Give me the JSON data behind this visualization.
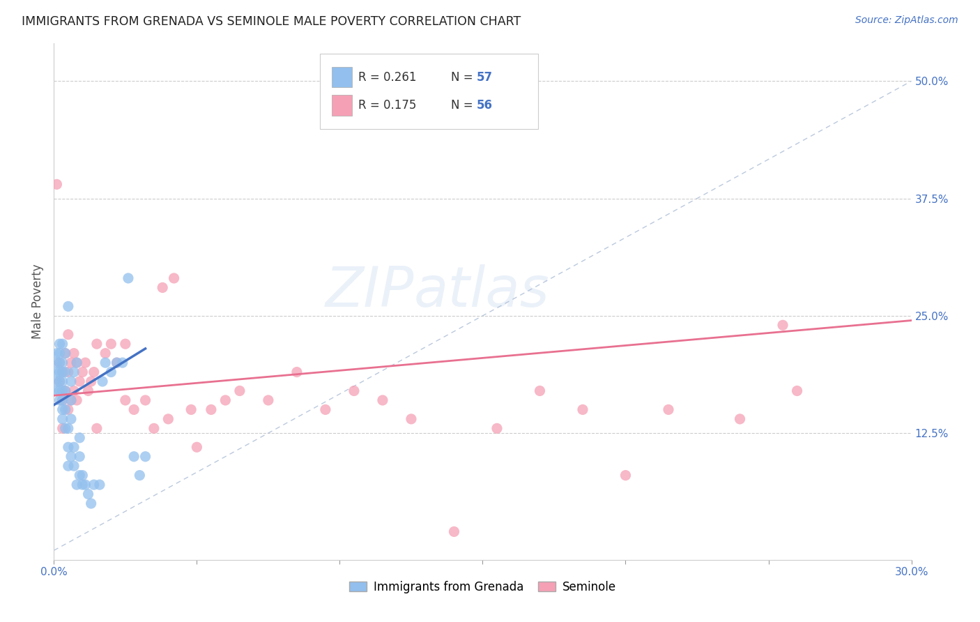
{
  "title": "IMMIGRANTS FROM GRENADA VS SEMINOLE MALE POVERTY CORRELATION CHART",
  "source": "Source: ZipAtlas.com",
  "ylabel": "Male Poverty",
  "yticks_labels": [
    "12.5%",
    "25.0%",
    "37.5%",
    "50.0%"
  ],
  "ytick_vals": [
    0.125,
    0.25,
    0.375,
    0.5
  ],
  "xlim": [
    0.0,
    0.3
  ],
  "ylim": [
    -0.01,
    0.54
  ],
  "legend_label1": "Immigrants from Grenada",
  "legend_label2": "Seminole",
  "color_blue": "#92BFED",
  "color_pink": "#F5A0B5",
  "color_trend_blue": "#4472C4",
  "color_trend_pink": "#E87090",
  "color_diag": "#AABBD4",
  "color_title": "#222222",
  "color_n_val": "#4472C4",
  "watermark": "ZIPatlas",
  "blue_x": [
    0.001,
    0.001,
    0.001,
    0.001,
    0.001,
    0.002,
    0.002,
    0.002,
    0.002,
    0.002,
    0.002,
    0.002,
    0.003,
    0.003,
    0.003,
    0.003,
    0.003,
    0.003,
    0.003,
    0.003,
    0.004,
    0.004,
    0.004,
    0.004,
    0.004,
    0.005,
    0.005,
    0.005,
    0.005,
    0.006,
    0.006,
    0.006,
    0.006,
    0.007,
    0.007,
    0.007,
    0.008,
    0.008,
    0.009,
    0.009,
    0.009,
    0.01,
    0.01,
    0.011,
    0.012,
    0.013,
    0.014,
    0.016,
    0.017,
    0.018,
    0.02,
    0.022,
    0.024,
    0.026,
    0.028,
    0.03,
    0.032
  ],
  "blue_y": [
    0.17,
    0.18,
    0.19,
    0.2,
    0.21,
    0.16,
    0.17,
    0.18,
    0.19,
    0.2,
    0.21,
    0.22,
    0.14,
    0.15,
    0.16,
    0.17,
    0.18,
    0.19,
    0.2,
    0.22,
    0.13,
    0.15,
    0.17,
    0.19,
    0.21,
    0.09,
    0.11,
    0.13,
    0.26,
    0.1,
    0.14,
    0.16,
    0.18,
    0.09,
    0.11,
    0.19,
    0.07,
    0.2,
    0.08,
    0.1,
    0.12,
    0.07,
    0.08,
    0.07,
    0.06,
    0.05,
    0.07,
    0.07,
    0.18,
    0.2,
    0.19,
    0.2,
    0.2,
    0.29,
    0.1,
    0.08,
    0.1
  ],
  "pink_x": [
    0.001,
    0.002,
    0.002,
    0.003,
    0.003,
    0.004,
    0.004,
    0.005,
    0.005,
    0.006,
    0.006,
    0.007,
    0.007,
    0.008,
    0.008,
    0.009,
    0.01,
    0.011,
    0.012,
    0.013,
    0.014,
    0.015,
    0.018,
    0.02,
    0.022,
    0.025,
    0.028,
    0.032,
    0.038,
    0.042,
    0.048,
    0.055,
    0.065,
    0.075,
    0.085,
    0.095,
    0.105,
    0.115,
    0.125,
    0.14,
    0.155,
    0.17,
    0.185,
    0.2,
    0.215,
    0.24,
    0.255,
    0.26,
    0.005,
    0.003,
    0.015,
    0.025,
    0.035,
    0.04,
    0.05,
    0.06
  ],
  "pink_y": [
    0.39,
    0.18,
    0.2,
    0.16,
    0.19,
    0.17,
    0.21,
    0.15,
    0.19,
    0.16,
    0.2,
    0.17,
    0.21,
    0.16,
    0.2,
    0.18,
    0.19,
    0.2,
    0.17,
    0.18,
    0.19,
    0.22,
    0.21,
    0.22,
    0.2,
    0.22,
    0.15,
    0.16,
    0.28,
    0.29,
    0.15,
    0.15,
    0.17,
    0.16,
    0.19,
    0.15,
    0.17,
    0.16,
    0.14,
    0.02,
    0.13,
    0.17,
    0.15,
    0.08,
    0.15,
    0.14,
    0.24,
    0.17,
    0.23,
    0.13,
    0.13,
    0.16,
    0.13,
    0.14,
    0.11,
    0.16
  ],
  "blue_trend_x": [
    0.0,
    0.032
  ],
  "blue_trend_y": [
    0.155,
    0.215
  ],
  "pink_trend_x": [
    0.0,
    0.3
  ],
  "pink_trend_y": [
    0.165,
    0.245
  ]
}
